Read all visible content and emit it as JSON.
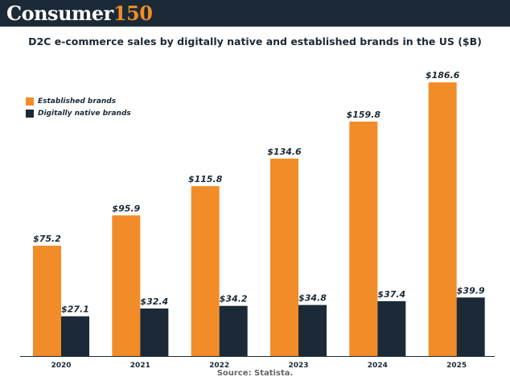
{
  "brand": {
    "name": "Consumer",
    "number": "150"
  },
  "source": "Source: Statista.",
  "colors": {
    "established": "#f28c28",
    "native": "#1b2a36",
    "header_bg": "#1b2a36"
  },
  "chart_data": {
    "type": "bar",
    "title": "D2C e-commerce sales by digitally native and established brands in the US ($B)",
    "categories": [
      "2020",
      "2021",
      "2022",
      "2023",
      "2024",
      "2025"
    ],
    "series": [
      {
        "name": "Established brands",
        "values": [
          75.2,
          95.9,
          115.8,
          134.6,
          159.8,
          186.6
        ],
        "labels": [
          "$75.2",
          "$95.9",
          "$115.8",
          "$134.6",
          "$159.8",
          "$186.6"
        ]
      },
      {
        "name": "Digitally native brands",
        "values": [
          27.1,
          32.4,
          34.2,
          34.8,
          37.4,
          39.9
        ],
        "labels": [
          "$27.1",
          "$32.4",
          "$34.2",
          "$34.8",
          "$37.4",
          "$39.9"
        ]
      }
    ],
    "legend_position": "top-left",
    "grid": false,
    "xlabel": "",
    "ylabel": "",
    "ylim": [
      0,
      190
    ]
  }
}
